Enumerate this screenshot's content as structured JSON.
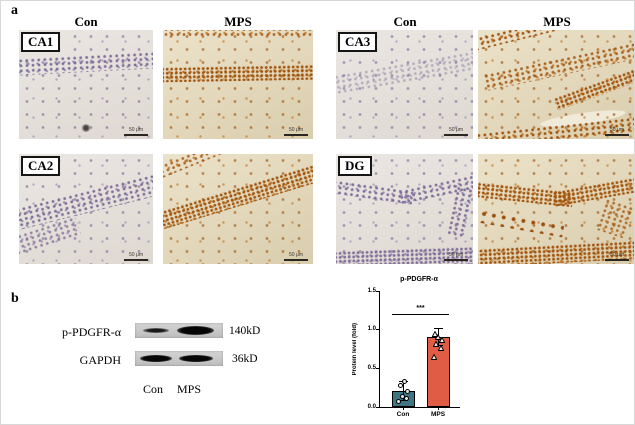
{
  "figure": {
    "panel_a": {
      "label": "a",
      "column_headers": [
        "Con",
        "MPS",
        "Con",
        "MPS"
      ],
      "regions": [
        "CA1",
        "CA2",
        "CA3",
        "DG"
      ],
      "scale_bar_label": "50 μm",
      "stain_colors": {
        "con_hematoxylin": "#8d7fa5",
        "mps_dab_brown": "#a8601c"
      }
    },
    "panel_b": {
      "label": "b",
      "blots": [
        {
          "target": "p-PDGFR-α",
          "molecular_weight": "140kD"
        },
        {
          "target": "GAPDH",
          "molecular_weight": "36kD"
        }
      ],
      "lane_labels": [
        "Con",
        "MPS"
      ]
    }
  },
  "chart_data": {
    "type": "bar",
    "title": "p-PDGFR-α",
    "ylabel": "Protein level (fold)",
    "categories": [
      "Con",
      "MPS"
    ],
    "values": [
      0.21,
      0.91
    ],
    "errors": [
      0.12,
      0.11
    ],
    "points": [
      [
        0.07,
        0.11,
        0.14,
        0.2,
        0.28,
        0.33
      ],
      [
        0.74,
        0.85,
        0.9,
        0.96,
        1.0,
        1.03
      ]
    ],
    "marker_shapes": [
      "circle",
      "triangle"
    ],
    "bar_colors": [
      "#3F7482",
      "#E05C45"
    ],
    "ylim": [
      0,
      1.5
    ],
    "yticks": [
      "0.0",
      "0.5",
      "1.0",
      "1.5"
    ],
    "significance": "***",
    "sig_line_y": 1.2,
    "grid": false,
    "legend_position": "none"
  }
}
